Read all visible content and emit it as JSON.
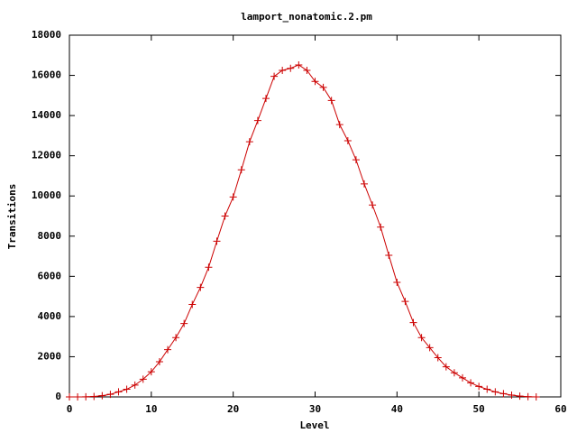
{
  "chart_data": {
    "type": "line",
    "title": "lamport_nonatomic.2.pm",
    "x_label": "Level",
    "y_label": "Transitions",
    "x": [
      0,
      1,
      2,
      3,
      4,
      5,
      6,
      7,
      8,
      9,
      10,
      11,
      12,
      13,
      14,
      15,
      16,
      17,
      18,
      19,
      20,
      21,
      22,
      23,
      24,
      25,
      26,
      27,
      28,
      29,
      30,
      31,
      32,
      33,
      34,
      35,
      36,
      37,
      38,
      39,
      40,
      41,
      42,
      43,
      44,
      45,
      46,
      47,
      48,
      49,
      50,
      51,
      52,
      53,
      54,
      55,
      56,
      57
    ],
    "series": [
      {
        "color": "#cc0000",
        "values": [
          0,
          0,
          5,
          20,
          60,
          130,
          250,
          380,
          590,
          880,
          1250,
          1750,
          2350,
          2950,
          3650,
          4600,
          5450,
          6450,
          7750,
          9000,
          9950,
          11300,
          12700,
          13750,
          14850,
          15950,
          16250,
          16350,
          16520,
          16250,
          15700,
          15400,
          14750,
          13550,
          12750,
          11800,
          10600,
          9550,
          8450,
          7050,
          5700,
          4750,
          3700,
          2950,
          2450,
          1950,
          1500,
          1200,
          950,
          700,
          520,
          380,
          250,
          160,
          90,
          40,
          10,
          0
        ]
      }
    ],
    "xlim": [
      0,
      60
    ],
    "xticks": [
      0,
      10,
      20,
      30,
      40,
      50,
      60
    ],
    "ylim": [
      0,
      18000
    ],
    "yticks": [
      0,
      2000,
      4000,
      6000,
      8000,
      10000,
      12000,
      14000,
      16000,
      18000
    ]
  }
}
